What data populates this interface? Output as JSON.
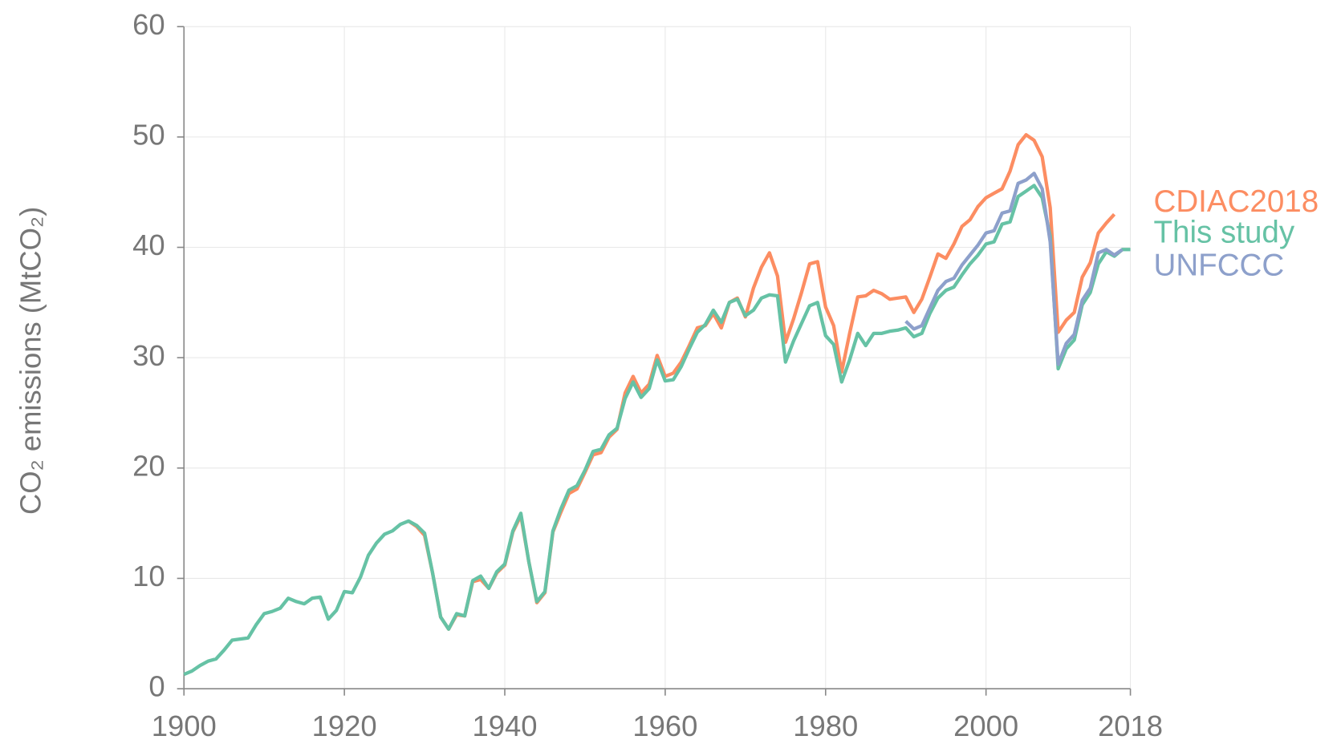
{
  "chart_data": {
    "type": "line",
    "ylabel": "CO₂ emissions (MtCO₂)",
    "x": [
      1900,
      1901,
      1902,
      1903,
      1904,
      1905,
      1906,
      1907,
      1908,
      1909,
      1910,
      1911,
      1912,
      1913,
      1914,
      1915,
      1916,
      1917,
      1918,
      1919,
      1920,
      1921,
      1922,
      1923,
      1924,
      1925,
      1926,
      1927,
      1928,
      1929,
      1930,
      1931,
      1932,
      1933,
      1934,
      1935,
      1936,
      1937,
      1938,
      1939,
      1940,
      1941,
      1942,
      1943,
      1944,
      1945,
      1946,
      1947,
      1948,
      1949,
      1950,
      1951,
      1952,
      1953,
      1954,
      1955,
      1956,
      1957,
      1958,
      1959,
      1960,
      1961,
      1962,
      1963,
      1964,
      1965,
      1966,
      1967,
      1968,
      1969,
      1970,
      1971,
      1972,
      1973,
      1974,
      1975,
      1976,
      1977,
      1978,
      1979,
      1980,
      1981,
      1982,
      1983,
      1984,
      1985,
      1986,
      1987,
      1988,
      1989,
      1990,
      1991,
      1992,
      1993,
      1994,
      1995,
      1996,
      1997,
      1998,
      1999,
      2000,
      2001,
      2002,
      2003,
      2004,
      2005,
      2006,
      2007,
      2008,
      2009,
      2010,
      2011,
      2012,
      2013,
      2014,
      2015,
      2016,
      2017,
      2018
    ],
    "series": [
      {
        "name": "This study",
        "color": "#66c2a5",
        "values": [
          1.3,
          1.6,
          2.1,
          2.5,
          2.7,
          3.5,
          4.4,
          4.5,
          4.6,
          5.8,
          6.8,
          7.0,
          7.3,
          8.2,
          7.9,
          7.7,
          8.2,
          8.3,
          6.3,
          7.1,
          8.8,
          8.7,
          10.1,
          12.1,
          13.2,
          14.0,
          14.3,
          14.9,
          15.2,
          14.8,
          14.1,
          10.5,
          6.5,
          5.4,
          6.8,
          6.6,
          9.8,
          10.2,
          9.1,
          10.6,
          11.3,
          14.3,
          15.9,
          11.5,
          7.9,
          8.8,
          14.3,
          16.3,
          18.0,
          18.4,
          19.8,
          21.5,
          21.7,
          23.0,
          23.6,
          26.3,
          27.8,
          26.4,
          27.2,
          29.8,
          27.9,
          28.0,
          29.2,
          30.8,
          32.3,
          33.0,
          34.3,
          33.2,
          35.0,
          35.3,
          33.8,
          34.3,
          35.4,
          35.7,
          35.6,
          29.6,
          31.5,
          33.1,
          34.7,
          35.0,
          32.0,
          31.2,
          27.8,
          29.8,
          32.2,
          31.1,
          32.2,
          32.2,
          32.4,
          32.5,
          32.7,
          31.9,
          32.2,
          34.0,
          35.4,
          36.1,
          36.4,
          37.5,
          38.5,
          39.3,
          40.3,
          40.5,
          42.1,
          42.3,
          44.6,
          45.1,
          45.6,
          44.5,
          41.0,
          29.0,
          30.8,
          31.6,
          34.8,
          35.9,
          38.5,
          39.6,
          39.2,
          39.8,
          39.8
        ]
      },
      {
        "name": "CDIAC2018",
        "color": "#fc8d62",
        "values": [
          null,
          null,
          null,
          null,
          null,
          null,
          null,
          null,
          null,
          null,
          null,
          null,
          null,
          null,
          null,
          null,
          null,
          null,
          null,
          null,
          null,
          null,
          null,
          null,
          null,
          null,
          null,
          null,
          15.2,
          14.7,
          13.9,
          10.5,
          6.5,
          5.4,
          6.7,
          6.6,
          9.7,
          9.9,
          9.1,
          10.5,
          11.2,
          14.2,
          15.7,
          11.5,
          7.8,
          8.7,
          14.2,
          16.0,
          17.7,
          18.1,
          19.6,
          21.2,
          21.4,
          22.8,
          23.5,
          26.8,
          28.3,
          26.8,
          27.6,
          30.2,
          28.3,
          28.6,
          29.6,
          31.1,
          32.7,
          32.9,
          34.0,
          32.7,
          35.0,
          35.4,
          33.7,
          36.3,
          38.2,
          39.5,
          37.4,
          31.4,
          33.5,
          35.9,
          38.5,
          38.7,
          34.6,
          32.9,
          28.7,
          32.2,
          35.5,
          35.6,
          36.1,
          35.8,
          35.3,
          35.4,
          35.5,
          34.1,
          35.3,
          37.3,
          39.4,
          39.0,
          40.3,
          41.9,
          42.5,
          43.7,
          44.5,
          44.9,
          45.3,
          46.9,
          49.3,
          50.2,
          49.7,
          48.2,
          43.6,
          32.3,
          33.4,
          34.1,
          37.3,
          38.6,
          41.3,
          42.2,
          43.0,
          null,
          null
        ]
      },
      {
        "name": "UNFCCC",
        "color": "#8da0cb",
        "values": [
          null,
          null,
          null,
          null,
          null,
          null,
          null,
          null,
          null,
          null,
          null,
          null,
          null,
          null,
          null,
          null,
          null,
          null,
          null,
          null,
          null,
          null,
          null,
          null,
          null,
          null,
          null,
          null,
          null,
          null,
          null,
          null,
          null,
          null,
          null,
          null,
          null,
          null,
          null,
          null,
          null,
          null,
          null,
          null,
          null,
          null,
          null,
          null,
          null,
          null,
          null,
          null,
          null,
          null,
          null,
          null,
          null,
          null,
          null,
          null,
          null,
          null,
          null,
          null,
          null,
          null,
          null,
          null,
          null,
          null,
          null,
          null,
          null,
          null,
          null,
          null,
          null,
          null,
          null,
          null,
          null,
          null,
          null,
          null,
          null,
          null,
          null,
          null,
          null,
          null,
          33.3,
          32.6,
          32.9,
          34.5,
          36.1,
          36.9,
          37.2,
          38.4,
          39.3,
          40.2,
          41.3,
          41.5,
          43.1,
          43.3,
          45.8,
          46.1,
          46.7,
          45.3,
          40.5,
          29.4,
          31.3,
          32.1,
          35.2,
          36.3,
          39.5,
          39.8,
          39.3,
          39.8,
          null
        ]
      }
    ],
    "xlim": [
      1900,
      2018
    ],
    "xticks": [
      1900,
      1920,
      1940,
      1960,
      1980,
      2000,
      2018
    ],
    "ylim": [
      0,
      60
    ],
    "yticks": [
      0,
      10,
      20,
      30,
      40,
      50,
      60
    ],
    "grid": true
  }
}
